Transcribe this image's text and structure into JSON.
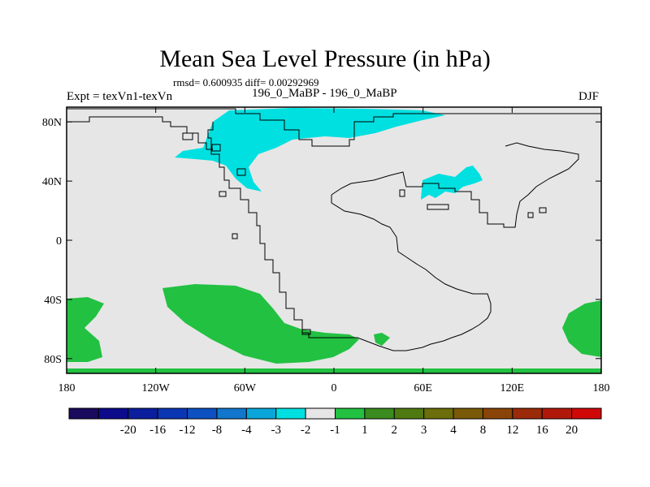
{
  "title": "Mean Sea Level Pressure (in hPa)",
  "stats_text": "rmsd= 0.600935 diff= 0.00292969",
  "experiment_label": "Expt = texVn1-texVn",
  "run_label": "196_0_MaBP - 196_0_MaBP",
  "season_label": "DJF",
  "map": {
    "x_ticks": [
      {
        "lon": -180,
        "label": "180"
      },
      {
        "lon": -120,
        "label": "120W"
      },
      {
        "lon": -60,
        "label": "60W"
      },
      {
        "lon": 0,
        "label": "0"
      },
      {
        "lon": 60,
        "label": "60E"
      },
      {
        "lon": 120,
        "label": "120E"
      },
      {
        "lon": 180,
        "label": "180"
      }
    ],
    "y_ticks": [
      {
        "lat": 80,
        "label": "80N"
      },
      {
        "lat": 40,
        "label": "40N"
      },
      {
        "lat": 0,
        "label": "0"
      },
      {
        "lat": -40,
        "label": "40S"
      },
      {
        "lat": -80,
        "label": "80S"
      }
    ],
    "background_color": "#e6e6e6",
    "negative_region_color": "#00e0e0",
    "positive_region_color": "#22c142"
  },
  "colorbar": {
    "colors": [
      "#1a0a5e",
      "#0b0b8c",
      "#0a1e9e",
      "#0b36b3",
      "#0d50c1",
      "#1176cc",
      "#0aa6d9",
      "#00e0e0",
      "#e6e6e6",
      "#22c142",
      "#3a8c1e",
      "#4f7a12",
      "#6b6e0a",
      "#7a5a08",
      "#8a4408",
      "#9a2a08",
      "#b0180a",
      "#d00808"
    ],
    "labels": [
      "-20",
      "-16",
      "-12",
      "-8",
      "-4",
      "-3",
      "-2",
      "-1",
      "1",
      "2",
      "3",
      "4",
      "8",
      "12",
      "16",
      "20"
    ]
  }
}
